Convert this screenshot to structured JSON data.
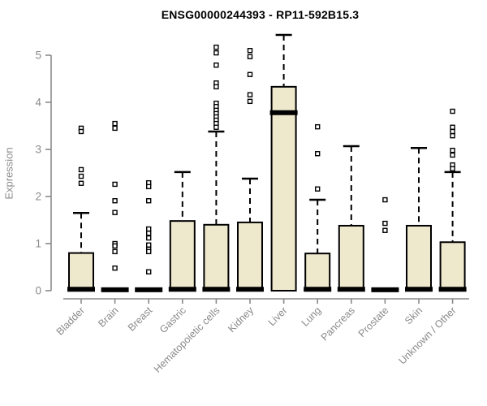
{
  "chart_data": {
    "type": "box",
    "title": "ENSG00000244393 - RP11-592B15.3",
    "ylabel": "Expression",
    "xlabel": "",
    "yticks": [
      0,
      1,
      2,
      3,
      4,
      5
    ],
    "ylim": [
      0,
      5.6
    ],
    "grid": false,
    "legend": false,
    "categories": [
      "Bladder",
      "Brain",
      "Breast",
      "Gastric",
      "Hematopoietic cells",
      "Kidney",
      "Liver",
      "Lung",
      "Pancreas",
      "Prostate",
      "Skin",
      "Unknown / Other"
    ],
    "boxes": [
      {
        "category": "Bladder",
        "q1": 0,
        "median": 0.03,
        "q3": 0.8,
        "whisker_low": 0,
        "whisker_high": 1.65,
        "outliers": [
          3.45,
          3.38,
          2.57,
          2.43,
          2.28
        ]
      },
      {
        "category": "Brain",
        "q1": 0,
        "median": 0.02,
        "q3": 0.04,
        "whisker_low": 0,
        "whisker_high": 0.04,
        "outliers": [
          3.55,
          3.45,
          2.26,
          1.91,
          1.66,
          1.0,
          0.95,
          0.83,
          0.48
        ]
      },
      {
        "category": "Breast",
        "q1": 0,
        "median": 0.02,
        "q3": 0.04,
        "whisker_low": 0,
        "whisker_high": 0.04,
        "outliers": [
          2.29,
          2.21,
          1.91,
          1.31,
          1.22,
          1.12,
          0.97,
          0.88,
          0.83,
          0.4
        ]
      },
      {
        "category": "Gastric",
        "q1": 0,
        "median": 0.03,
        "q3": 1.48,
        "whisker_low": 0,
        "whisker_high": 2.52,
        "outliers": []
      },
      {
        "category": "Hematopoietic cells",
        "q1": 0,
        "median": 0.03,
        "q3": 1.4,
        "whisker_low": 0,
        "whisker_high": 3.38,
        "outliers": [
          5.17,
          5.05,
          4.79,
          4.41,
          4.33,
          3.98,
          3.91,
          3.83,
          3.76,
          3.69,
          3.62,
          3.55,
          3.47
        ]
      },
      {
        "category": "Kidney",
        "q1": 0,
        "median": 0.03,
        "q3": 1.45,
        "whisker_low": 0,
        "whisker_high": 2.38,
        "outliers": [
          5.1,
          4.97,
          4.59,
          4.16,
          4.02
        ]
      },
      {
        "category": "Liver",
        "q1": 0,
        "median": 3.78,
        "q3": 4.33,
        "whisker_low": 0,
        "whisker_high": 5.43,
        "outliers": []
      },
      {
        "category": "Lung",
        "q1": 0,
        "median": 0.03,
        "q3": 0.79,
        "whisker_low": 0,
        "whisker_high": 1.93,
        "outliers": [
          3.48,
          2.91,
          2.16
        ]
      },
      {
        "category": "Pancreas",
        "q1": 0,
        "median": 0.03,
        "q3": 1.38,
        "whisker_low": 0,
        "whisker_high": 3.07,
        "outliers": []
      },
      {
        "category": "Prostate",
        "q1": 0,
        "median": 0.02,
        "q3": 0.04,
        "whisker_low": 0,
        "whisker_high": 0.04,
        "outliers": [
          1.93,
          1.43,
          1.28
        ]
      },
      {
        "category": "Skin",
        "q1": 0,
        "median": 0.03,
        "q3": 1.38,
        "whisker_low": 0,
        "whisker_high": 3.03,
        "outliers": []
      },
      {
        "category": "Unknown / Other",
        "q1": 0,
        "median": 0.03,
        "q3": 1.03,
        "whisker_low": 0,
        "whisker_high": 2.52,
        "outliers": [
          3.81,
          3.47,
          3.38,
          3.29,
          2.98,
          2.88,
          2.67,
          2.59
        ]
      }
    ],
    "colors": {
      "box_fill": "#EEE8CD",
      "box_border": "#000000",
      "median": "#000000",
      "whisker": "#000000",
      "axis": "#8a8a8a",
      "tick_text": "#8a8a8a",
      "title_text": "#000000",
      "background": "#ffffff"
    }
  }
}
